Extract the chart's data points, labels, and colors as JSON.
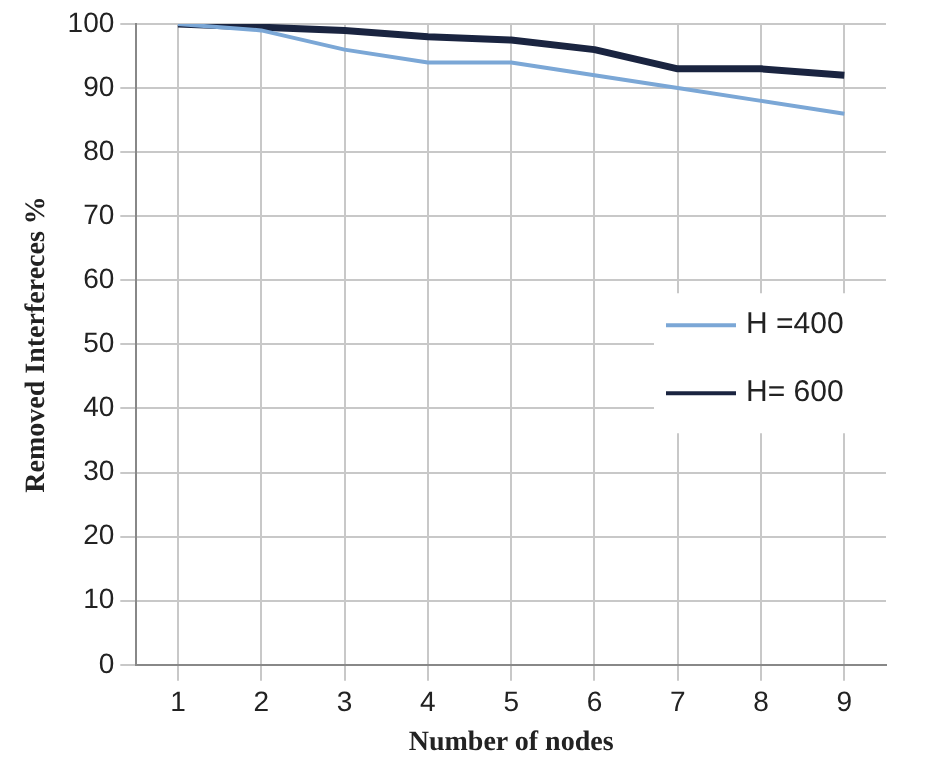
{
  "chart_data": {
    "type": "line",
    "xlabel": "Number of nodes",
    "ylabel": "Removed Interfereces %",
    "categories": [
      "1",
      "2",
      "3",
      "4",
      "5",
      "6",
      "7",
      "8",
      "9"
    ],
    "series": [
      {
        "name": "H =400",
        "color": "#7ba7d6",
        "values": [
          100,
          99,
          96,
          94,
          94,
          92,
          90,
          88,
          86
        ]
      },
      {
        "name": "H= 600",
        "color": "#1a2440",
        "values": [
          100,
          99.5,
          99,
          98,
          97.5,
          96,
          93,
          93,
          92
        ]
      }
    ],
    "ylim": [
      0,
      100
    ],
    "yticks": [
      0,
      10,
      20,
      30,
      40,
      50,
      60,
      70,
      80,
      90,
      100
    ],
    "grid": true,
    "legend": "right",
    "marker": "none",
    "line_style": "solid"
  }
}
